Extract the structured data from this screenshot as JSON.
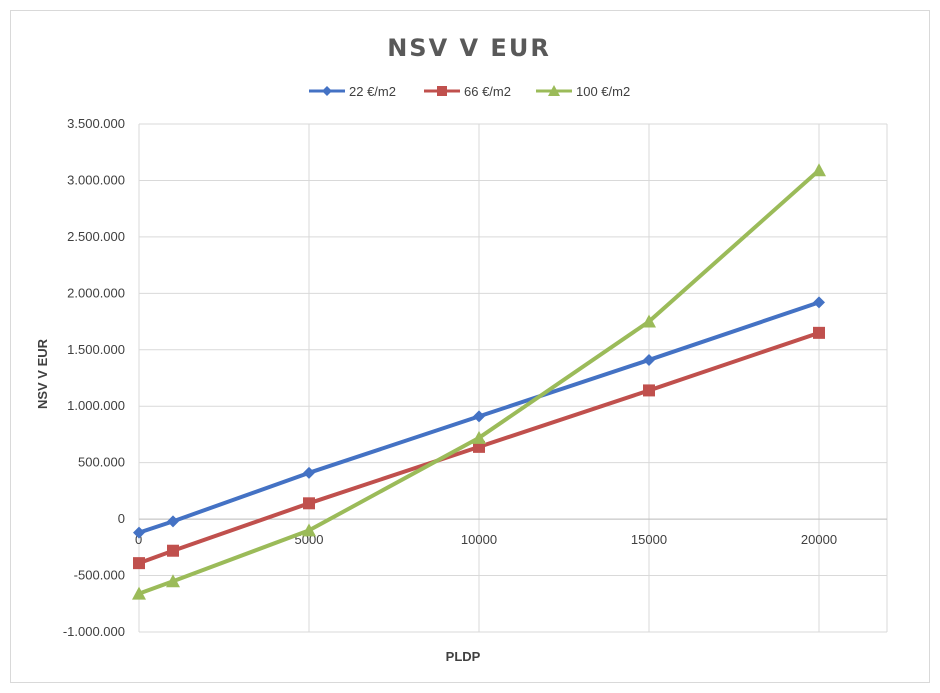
{
  "chart_data": {
    "type": "line",
    "title": "NSV V EUR",
    "xlabel": "PLDP",
    "ylabel": "NSV V EUR",
    "xlim": [
      0,
      22000
    ],
    "ylim": [
      -1000000,
      3500000
    ],
    "x_ticks": [
      "0",
      "5000",
      "10000",
      "15000",
      "20000"
    ],
    "x_tick_values": [
      0,
      5000,
      10000,
      15000,
      20000
    ],
    "y_ticks": [
      "-1.000.000",
      "-500.000",
      "0",
      "500.000",
      "1.000.000",
      "1.500.000",
      "2.000.000",
      "2.500.000",
      "3.000.000",
      "3.500.000"
    ],
    "y_tick_values": [
      -1000000,
      -500000,
      0,
      500000,
      1000000,
      1500000,
      2000000,
      2500000,
      3000000,
      3500000
    ],
    "grid": true,
    "legend_position": "top",
    "x": [
      0,
      1000,
      5000,
      10000,
      15000,
      20000
    ],
    "series": [
      {
        "name": "22 €/m2",
        "color": "#4472c4",
        "marker": "diamond",
        "values": [
          -120000,
          -20000,
          410000,
          910000,
          1410000,
          1920000
        ]
      },
      {
        "name": "66 €/m2",
        "color": "#c0504d",
        "marker": "square",
        "values": [
          -390000,
          -280000,
          140000,
          640000,
          1140000,
          1650000
        ]
      },
      {
        "name": "100 €/m2",
        "color": "#9bbb59",
        "marker": "triangle",
        "values": [
          -660000,
          -550000,
          -100000,
          720000,
          1750000,
          3090000
        ]
      }
    ]
  }
}
